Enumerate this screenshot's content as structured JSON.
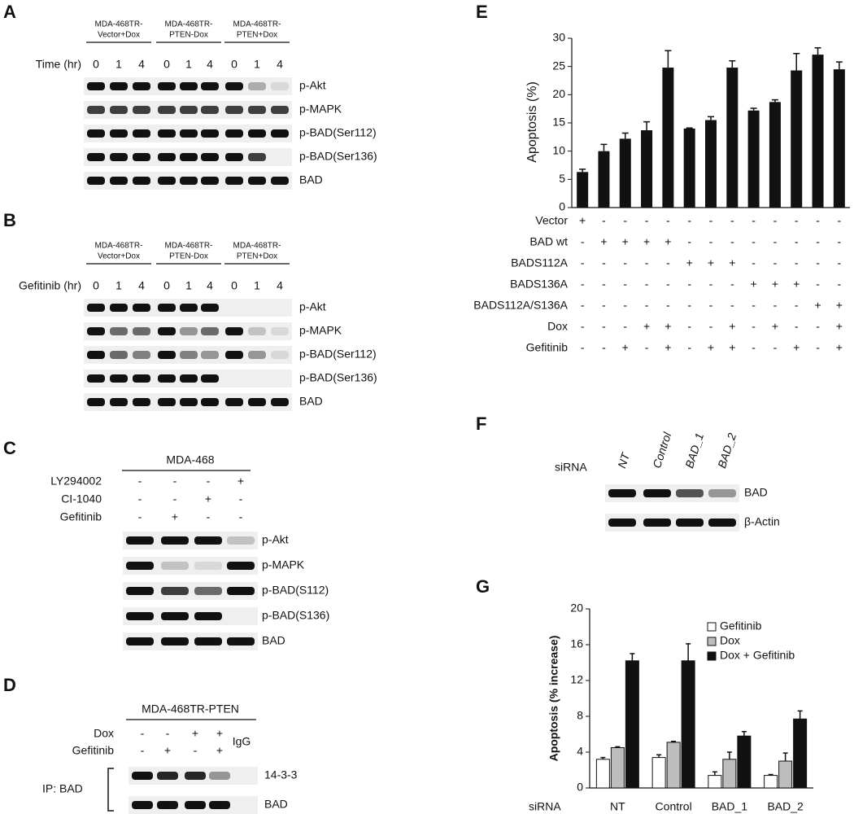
{
  "panels": {
    "A": {
      "label": "A",
      "groups": [
        [
          "MDA-468TR-",
          "Vector+Dox"
        ],
        [
          "MDA-468TR-",
          "PTEN-Dox"
        ],
        [
          "MDA-468TR-",
          "PTEN+Dox"
        ]
      ],
      "row_label": "Time (hr)",
      "lanes": [
        "0",
        "1",
        "4",
        "0",
        "1",
        "4",
        "0",
        "1",
        "4"
      ],
      "bands": [
        "p-Akt",
        "p-MAPK",
        "p-BAD(Ser112)",
        "p-BAD(Ser136)",
        "BAD"
      ]
    },
    "B": {
      "label": "B",
      "groups": [
        [
          "MDA-468TR-",
          "Vector+Dox"
        ],
        [
          "MDA-468TR-",
          "PTEN-Dox"
        ],
        [
          "MDA-468TR-",
          "PTEN+Dox"
        ]
      ],
      "row_label": "Gefitinib (hr)",
      "lanes": [
        "0",
        "1",
        "4",
        "0",
        "1",
        "4",
        "0",
        "1",
        "4"
      ],
      "bands": [
        "p-Akt",
        "p-MAPK",
        "p-BAD(Ser112)",
        "p-BAD(Ser136)",
        "BAD"
      ]
    },
    "C": {
      "label": "C",
      "header": "MDA-468",
      "conditions": [
        {
          "name": "LY294002",
          "signs": [
            "-",
            "-",
            "-",
            "+"
          ]
        },
        {
          "name": "CI-1040",
          "signs": [
            "-",
            "-",
            "+",
            "-"
          ]
        },
        {
          "name": "Gefitinib",
          "signs": [
            "-",
            "+",
            "-",
            "-"
          ]
        }
      ],
      "bands": [
        "p-Akt",
        "p-MAPK",
        "p-BAD(S112)",
        "p-BAD(S136)",
        "BAD"
      ]
    },
    "D": {
      "label": "D",
      "header": "MDA-468TR-PTEN",
      "conditions": [
        {
          "name": "Dox",
          "signs": [
            "-",
            "-",
            "+",
            "+"
          ]
        },
        {
          "name": "Gefitinib",
          "signs": [
            "-",
            "+",
            "-",
            "+"
          ]
        }
      ],
      "extra_lane": "IgG",
      "ip_label": "IP: BAD",
      "bands": [
        "14-3-3",
        "BAD"
      ]
    },
    "E": {
      "label": "E",
      "conditions": [
        {
          "name": "Vector",
          "signs": [
            "+",
            "-",
            "-",
            "-",
            "-",
            "-",
            "-",
            "-",
            "-",
            "-",
            "-",
            "-",
            "-"
          ]
        },
        {
          "name": "BAD wt",
          "signs": [
            "-",
            "+",
            "+",
            "+",
            "+",
            "-",
            "-",
            "-",
            "-",
            "-",
            "-",
            "-",
            "-"
          ]
        },
        {
          "name": "BADS112A",
          "signs": [
            "-",
            "-",
            "-",
            "-",
            "-",
            "+",
            "+",
            "+",
            "-",
            "-",
            "-",
            "-",
            "-"
          ]
        },
        {
          "name": "BADS136A",
          "signs": [
            "-",
            "-",
            "-",
            "-",
            "-",
            "-",
            "-",
            "-",
            "+",
            "+",
            "+",
            "-",
            "-"
          ]
        },
        {
          "name": "BADS112A/S136A",
          "signs": [
            "-",
            "-",
            "-",
            "-",
            "-",
            "-",
            "-",
            "-",
            "-",
            "-",
            "-",
            "+",
            "+"
          ]
        },
        {
          "name": "Dox",
          "signs": [
            "-",
            "-",
            "-",
            "+",
            "+",
            "-",
            "-",
            "+",
            "-",
            "+",
            "-",
            "-",
            "+"
          ]
        },
        {
          "name": "Gefitinib",
          "signs": [
            "-",
            "-",
            "+",
            "-",
            "+",
            "-",
            "+",
            "+",
            "-",
            "-",
            "+",
            "-",
            "+"
          ]
        }
      ]
    },
    "F": {
      "label": "F",
      "row_label": "siRNA",
      "lanes": [
        "NT",
        "Control",
        "BAD_1",
        "BAD_2"
      ],
      "bands": [
        "BAD",
        "β-Actin"
      ]
    },
    "G": {
      "label": "G"
    }
  },
  "chart_data": [
    {
      "type": "bar",
      "ylabel": "Apoptosis (%)",
      "values": [
        6.3,
        10,
        12.2,
        13.7,
        24.8,
        14,
        15.5,
        24.8,
        17.2,
        18.7,
        24.3,
        27.1,
        24.5
      ],
      "errors": [
        0.5,
        1.2,
        1.0,
        1.5,
        3.0,
        0.1,
        0.6,
        1.2,
        0.4,
        0.4,
        3.0,
        1.2,
        1.3
      ],
      "color": "#111111",
      "ylim": [
        0,
        30
      ],
      "yticks": [
        0,
        5,
        10,
        15,
        20,
        25,
        30
      ]
    },
    {
      "type": "grouped_bar",
      "ylabel": "Apoptosis (% increase)",
      "xlabel": "siRNA",
      "categories": [
        "NT",
        "Control",
        "BAD_1",
        "BAD_2"
      ],
      "series": [
        {
          "name": "Gefitinib",
          "color": "#ffffff",
          "values": [
            3.2,
            3.4,
            1.4,
            1.4
          ],
          "errors": [
            0.2,
            0.3,
            0.4,
            0.1
          ]
        },
        {
          "name": "Dox",
          "color": "#bdbdbd",
          "values": [
            4.5,
            5.1,
            3.2,
            3.0
          ],
          "errors": [
            0.1,
            0.1,
            0.8,
            0.9
          ]
        },
        {
          "name": "Dox + Gefitinib",
          "color": "#111111",
          "values": [
            14.2,
            14.2,
            5.8,
            7.7
          ],
          "errors": [
            0.8,
            1.9,
            0.5,
            0.9
          ]
        }
      ],
      "ylim": [
        0,
        20
      ],
      "yticks": [
        0,
        4,
        8,
        12,
        16,
        20
      ],
      "legend": "upper right"
    }
  ]
}
